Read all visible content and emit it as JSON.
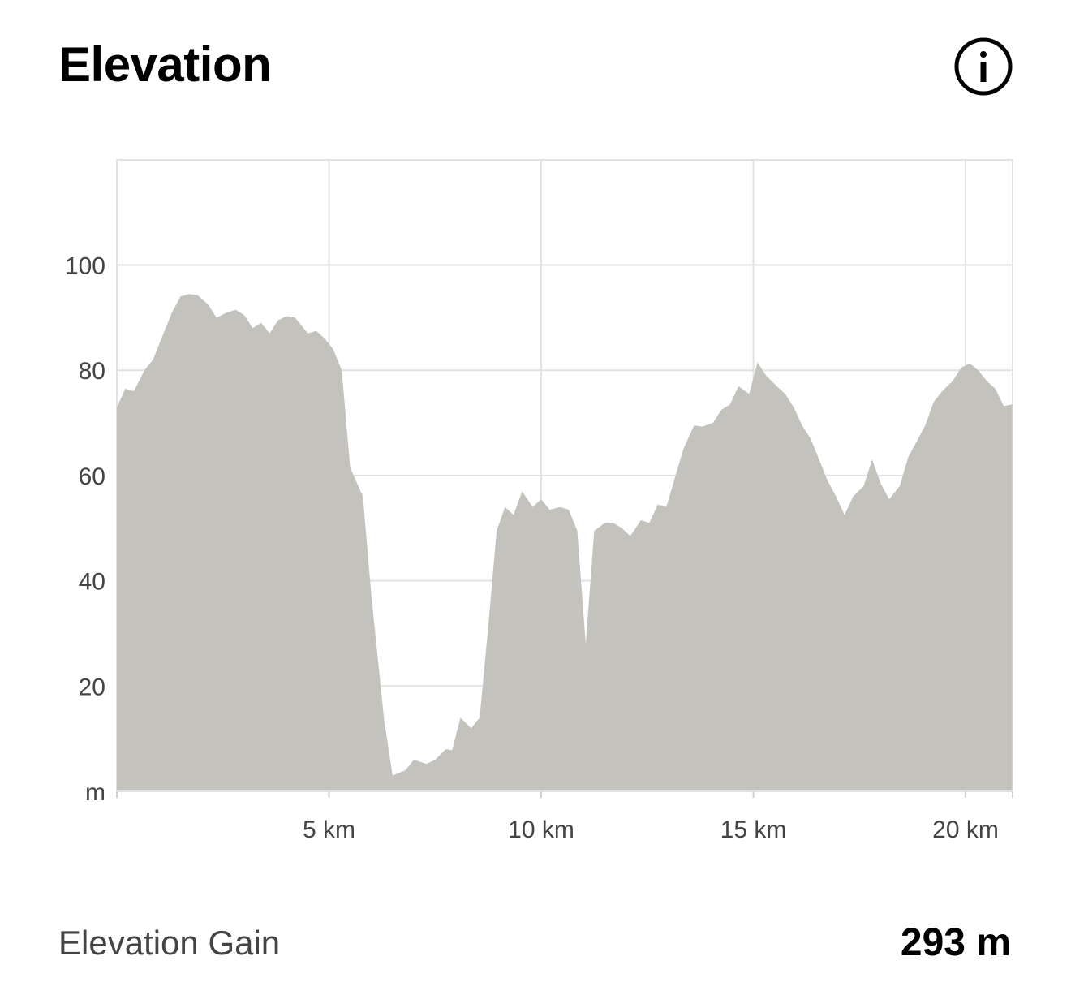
{
  "header": {
    "title": "Elevation",
    "info_icon": "info-icon"
  },
  "summary": {
    "label": "Elevation Gain",
    "value": "293 m"
  },
  "colors": {
    "area_fill": "#c3c2bd",
    "grid": "#e2e2e2",
    "tick_text": "#444444",
    "title": "#000000"
  },
  "chart_data": {
    "type": "area",
    "title": "Elevation",
    "xlabel": "",
    "ylabel": "",
    "x_unit": "km",
    "y_unit": "m",
    "xlim": [
      0,
      21.1
    ],
    "ylim": [
      0,
      120
    ],
    "grid": true,
    "y_ticks": [
      {
        "value": 0,
        "label": "m"
      },
      {
        "value": 20,
        "label": "20"
      },
      {
        "value": 40,
        "label": "40"
      },
      {
        "value": 60,
        "label": "60"
      },
      {
        "value": 80,
        "label": "80"
      },
      {
        "value": 100,
        "label": "100"
      }
    ],
    "x_ticks": [
      {
        "value": 5,
        "label": "5 km"
      },
      {
        "value": 10,
        "label": "10 km"
      },
      {
        "value": 15,
        "label": "15 km"
      },
      {
        "value": 20,
        "label": "20 km"
      }
    ],
    "series": [
      {
        "x": [
          0,
          0.2,
          0.4,
          0.65,
          0.85,
          1.1,
          1.3,
          1.5,
          1.7,
          1.9,
          2.15,
          2.35,
          2.6,
          2.8,
          3.0,
          3.2,
          3.4,
          3.6,
          3.8,
          4.0,
          4.2,
          4.5,
          4.7,
          4.9,
          5.1,
          5.3,
          5.5,
          5.8,
          6.0,
          6.3,
          6.5,
          6.8,
          7.0,
          7.3,
          7.5,
          7.75,
          7.9,
          8.1,
          8.35,
          8.55,
          8.75,
          8.95,
          9.15,
          9.35,
          9.55,
          9.8,
          10.0,
          10.2,
          10.45,
          10.65,
          10.85,
          11.05,
          11.25,
          11.5,
          11.7,
          11.9,
          12.1,
          12.35,
          12.55,
          12.75,
          12.95,
          13.15,
          13.35,
          13.6,
          13.8,
          14.05,
          14.25,
          14.45,
          14.65,
          14.9,
          15.1,
          15.3,
          15.55,
          15.75,
          15.95,
          16.15,
          16.35,
          16.55,
          16.75,
          16.95,
          17.15,
          17.35,
          17.6,
          17.8,
          18.0,
          18.2,
          18.45,
          18.65,
          18.85,
          19.05,
          19.25,
          19.45,
          19.7,
          19.9,
          20.1,
          20.3,
          20.5,
          20.7,
          20.9,
          21.1
        ],
        "y": [
          73,
          76.5,
          76,
          80,
          82,
          87,
          91,
          94,
          94.5,
          94.3,
          92.5,
          90,
          91,
          91.5,
          90.5,
          88,
          89,
          87,
          89.5,
          90.3,
          90,
          87,
          87.5,
          86,
          84,
          80,
          61.5,
          56,
          37,
          13.5,
          3,
          4,
          6,
          5.2,
          6,
          8,
          7.8,
          14,
          12,
          14,
          31,
          49.5,
          54,
          52.5,
          57,
          54,
          55.5,
          53.5,
          54,
          53.5,
          49.5,
          28,
          49.5,
          51,
          51,
          50,
          48.5,
          51.5,
          51,
          54.5,
          54,
          59.5,
          65,
          69.5,
          69.3,
          70,
          72.5,
          73.5,
          77,
          75.5,
          81.5,
          79,
          77,
          75.5,
          73,
          69.5,
          67,
          63,
          59,
          56,
          52.5,
          56,
          58,
          63,
          58.5,
          55.5,
          58,
          63.5,
          66.5,
          69.5,
          74,
          76,
          78,
          80.5,
          81.3,
          80,
          78,
          76.5,
          73.2,
          73.5
        ]
      }
    ]
  }
}
